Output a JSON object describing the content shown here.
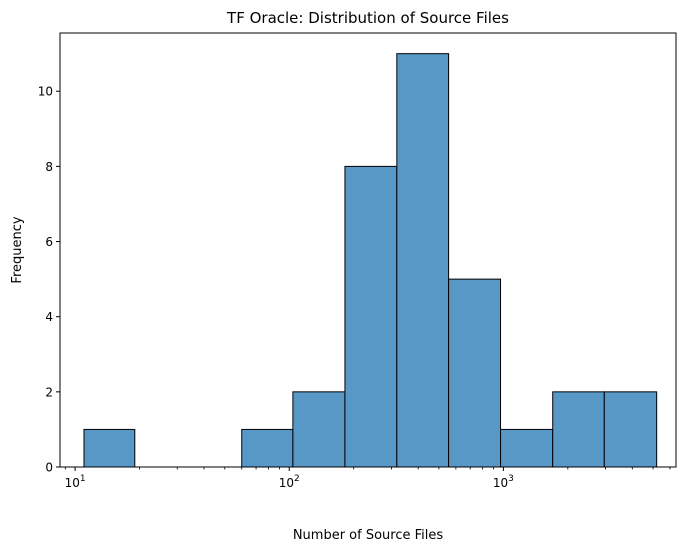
{
  "chart_data": {
    "type": "bar",
    "title": "TF Oracle: Distribution of Source Files",
    "xlabel": "Number of Source Files",
    "ylabel": "Frequency",
    "x_scale": "log",
    "xlim": [
      8.5,
      6400
    ],
    "ylim": [
      0,
      11.55
    ],
    "x_ticks": [
      {
        "value": 10,
        "base": "10",
        "exp": "1"
      },
      {
        "value": 100,
        "base": "10",
        "exp": "2"
      },
      {
        "value": 1000,
        "base": "10",
        "exp": "3"
      }
    ],
    "y_ticks": [
      "0",
      "2",
      "4",
      "6",
      "8",
      "10"
    ],
    "bins": [
      {
        "x0": 11,
        "x1": 19,
        "count": 1
      },
      {
        "x0": 19,
        "x1": 34,
        "count": 0
      },
      {
        "x0": 34,
        "x1": 60,
        "count": 0
      },
      {
        "x0": 60,
        "x1": 104,
        "count": 1
      },
      {
        "x0": 104,
        "x1": 182,
        "count": 2
      },
      {
        "x0": 182,
        "x1": 318,
        "count": 8
      },
      {
        "x0": 318,
        "x1": 555,
        "count": 11
      },
      {
        "x0": 555,
        "x1": 970,
        "count": 5
      },
      {
        "x0": 970,
        "x1": 1700,
        "count": 1
      },
      {
        "x0": 1700,
        "x1": 2960,
        "count": 2
      },
      {
        "x0": 2960,
        "x1": 5200,
        "count": 2
      }
    ],
    "colors": {
      "bar_fill": "#5798c6",
      "bar_edge": "#000000",
      "axis": "#000000"
    },
    "grid": false,
    "legend": "none"
  }
}
